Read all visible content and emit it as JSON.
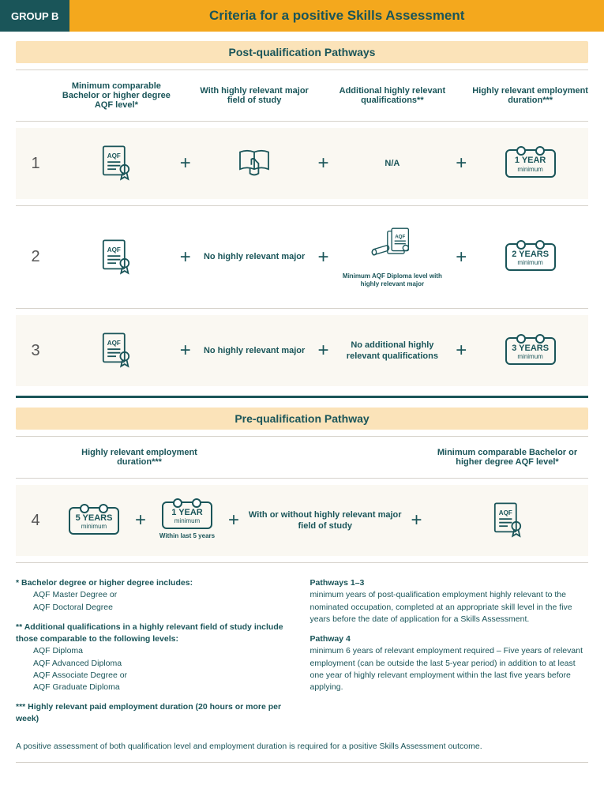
{
  "colors": {
    "teal": "#1a5559",
    "orange": "#f4a81d",
    "cream": "#fbe3b9",
    "row_light": "#faf8f2",
    "divider": "#d6d2cb",
    "white": "#ffffff"
  },
  "header": {
    "group_label": "GROUP B",
    "title": "Criteria for a positive Skills Assessment"
  },
  "sections": {
    "post_title": "Post-qualification Pathways",
    "pre_title": "Pre-qualification Pathway"
  },
  "post_column_headers": {
    "col1": "Minimum comparable Bachelor or higher degree AQF level*",
    "col2": "With highly relevant major field of study",
    "col3": "Additional highly relevant qualifications**",
    "col4": "Highly relevant employment duration***"
  },
  "post_rows": [
    {
      "num": "1",
      "col3_text": "N/A",
      "employment": {
        "big": "1 YEAR",
        "small": "minimum"
      }
    },
    {
      "num": "2",
      "col2_text": "No highly relevant major",
      "col3_sub": "Minimum AQF Diploma level with highly relevant major",
      "employment": {
        "big": "2 YEARS",
        "small": "minimum"
      }
    },
    {
      "num": "3",
      "col2_text": "No highly relevant major",
      "col3_text": "No additional highly relevant qualifications",
      "employment": {
        "big": "3 YEARS",
        "small": "minimum"
      }
    }
  ],
  "pre_column_headers": {
    "col1": "Highly relevant employment duration***",
    "col4": "Minimum comparable Bachelor or higher degree AQF level*"
  },
  "pre_row": {
    "num": "4",
    "cal1": {
      "big": "5 YEARS",
      "small": "minimum"
    },
    "cal2": {
      "big": "1 YEAR",
      "small": "minimum",
      "sub": "Within last 5 years"
    },
    "col_mid": "With or without highly relevant major field of study"
  },
  "plus_glyph": "+",
  "footnotes": {
    "left": [
      {
        "marker": "*",
        "title": "Bachelor degree or higher degree includes:",
        "lines": [
          "AQF Master Degree or",
          "AQF Doctoral Degree"
        ]
      },
      {
        "marker": "**",
        "title": "Additional qualifications in a highly relevant field of study include those comparable to the following levels:",
        "lines": [
          "AQF Diploma",
          "AQF Advanced Diploma",
          "AQF Associate Degree or",
          "AQF Graduate Diploma"
        ]
      },
      {
        "marker": "***",
        "title": "Highly relevant paid employment duration (20 hours or more per week)",
        "lines": []
      }
    ],
    "right": [
      {
        "title": "Pathways 1–3",
        "body": "minimum years of post-qualification employment highly relevant to the nominated occupation, completed at an appropriate skill level in the five years before the date of application for a Skills Assessment."
      },
      {
        "title": "Pathway 4",
        "body": "minimum 6 years of relevant employment required – Five years of relevant employment (can be outside the last 5-year period) in addition to at least one year of highly relevant employment within the last five years before applying."
      }
    ]
  },
  "final_note": "A positive assessment of both qualification level and employment duration is required for a positive Skills Assessment outcome.",
  "icons": {
    "aqf_label": "AQF"
  },
  "typography": {
    "title_fontsize": 17,
    "section_fontsize": 14,
    "header_fontsize": 11,
    "body_fontsize": 11,
    "footnote_fontsize": 10.5,
    "row_num_fontsize": 20,
    "plus_fontsize": 24
  }
}
